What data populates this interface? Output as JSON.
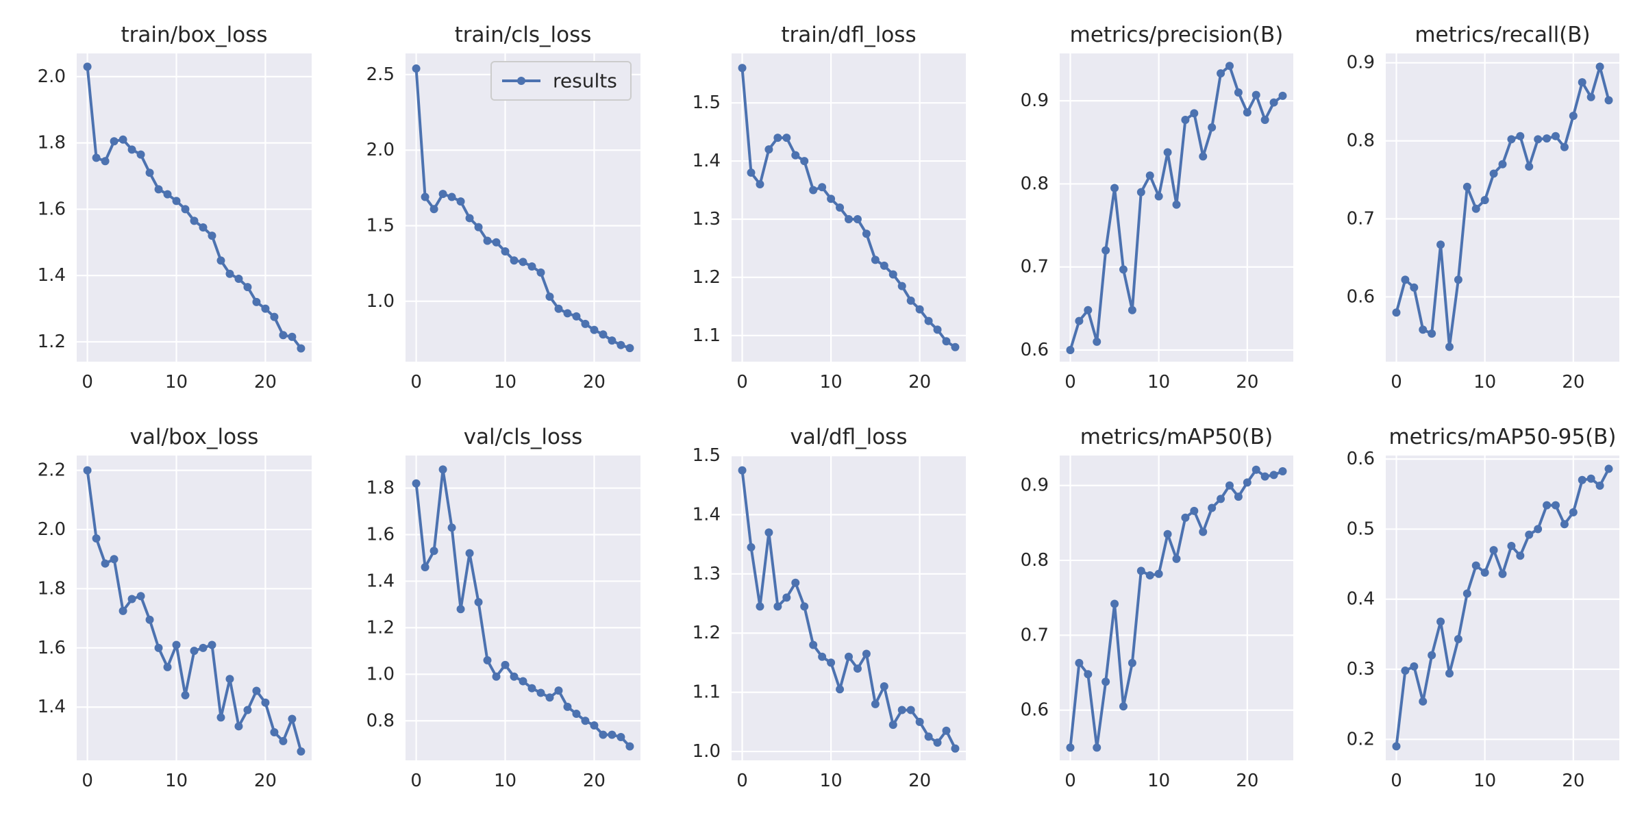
{
  "style": {
    "axes_background": "#EAEAF2",
    "grid_color": "#FFFFFF",
    "line_color": "#4C72B0",
    "text_color": "#262626",
    "legend_border": "#CCCCCC"
  },
  "legend": {
    "label": "results",
    "placement": "upper right",
    "subplot": "train/cls_loss"
  },
  "chart_data": [
    {
      "type": "line",
      "title": "train/box_loss",
      "x": [
        0,
        1,
        2,
        3,
        4,
        5,
        6,
        7,
        8,
        9,
        10,
        11,
        12,
        13,
        14,
        15,
        16,
        17,
        18,
        19,
        20,
        21,
        22,
        23,
        24
      ],
      "series": [
        {
          "name": "results",
          "values": [
            2.03,
            1.755,
            1.745,
            1.805,
            1.81,
            1.78,
            1.765,
            1.71,
            1.66,
            1.645,
            1.625,
            1.6,
            1.565,
            1.545,
            1.52,
            1.445,
            1.405,
            1.39,
            1.365,
            1.32,
            1.3,
            1.275,
            1.22,
            1.215,
            1.18
          ]
        }
      ],
      "xlim": [
        -1.2,
        25.2
      ],
      "ylim": [
        1.14,
        2.07
      ],
      "xticks": [
        0,
        10,
        20
      ],
      "yticks": [
        1.2,
        1.4,
        1.6,
        1.8,
        2.0
      ],
      "xtick_labels": [
        "0",
        "10",
        "20"
      ],
      "ytick_labels": [
        "1.2",
        "1.4",
        "1.6",
        "1.8",
        "2.0"
      ],
      "grid": true
    },
    {
      "type": "line",
      "title": "train/cls_loss",
      "x": [
        0,
        1,
        2,
        3,
        4,
        5,
        6,
        7,
        8,
        9,
        10,
        11,
        12,
        13,
        14,
        15,
        16,
        17,
        18,
        19,
        20,
        21,
        22,
        23,
        24
      ],
      "series": [
        {
          "name": "results",
          "values": [
            2.54,
            1.69,
            1.61,
            1.71,
            1.69,
            1.66,
            1.55,
            1.49,
            1.4,
            1.39,
            1.33,
            1.27,
            1.26,
            1.23,
            1.19,
            1.03,
            0.95,
            0.92,
            0.9,
            0.85,
            0.81,
            0.78,
            0.74,
            0.71,
            0.69
          ]
        }
      ],
      "xlim": [
        -1.2,
        25.2
      ],
      "ylim": [
        0.6,
        2.64
      ],
      "xticks": [
        0,
        10,
        20
      ],
      "yticks": [
        1.0,
        1.5,
        2.0,
        2.5
      ],
      "xtick_labels": [
        "0",
        "10",
        "20"
      ],
      "ytick_labels": [
        "1.0",
        "1.5",
        "2.0",
        "2.5"
      ],
      "grid": true
    },
    {
      "type": "line",
      "title": "train/dfl_loss",
      "x": [
        0,
        1,
        2,
        3,
        4,
        5,
        6,
        7,
        8,
        9,
        10,
        11,
        12,
        13,
        14,
        15,
        16,
        17,
        18,
        19,
        20,
        21,
        22,
        23,
        24
      ],
      "series": [
        {
          "name": "results",
          "values": [
            1.56,
            1.38,
            1.36,
            1.42,
            1.44,
            1.44,
            1.41,
            1.4,
            1.35,
            1.355,
            1.335,
            1.32,
            1.3,
            1.3,
            1.275,
            1.23,
            1.22,
            1.205,
            1.185,
            1.16,
            1.145,
            1.125,
            1.11,
            1.09,
            1.08
          ]
        }
      ],
      "xlim": [
        -1.2,
        25.2
      ],
      "ylim": [
        1.055,
        1.585
      ],
      "xticks": [
        0,
        10,
        20
      ],
      "yticks": [
        1.1,
        1.2,
        1.3,
        1.4,
        1.5
      ],
      "xtick_labels": [
        "0",
        "10",
        "20"
      ],
      "ytick_labels": [
        "1.1",
        "1.2",
        "1.3",
        "1.4",
        "1.5"
      ],
      "grid": true
    },
    {
      "type": "line",
      "title": "metrics/precision(B)",
      "x": [
        0,
        1,
        2,
        3,
        4,
        5,
        6,
        7,
        8,
        9,
        10,
        11,
        12,
        13,
        14,
        15,
        16,
        17,
        18,
        19,
        20,
        21,
        22,
        23,
        24
      ],
      "series": [
        {
          "name": "results",
          "values": [
            0.6,
            0.635,
            0.648,
            0.61,
            0.72,
            0.795,
            0.697,
            0.648,
            0.79,
            0.81,
            0.785,
            0.838,
            0.775,
            0.877,
            0.885,
            0.833,
            0.868,
            0.933,
            0.942,
            0.91,
            0.886,
            0.907,
            0.877,
            0.898,
            0.906
          ]
        }
      ],
      "xlim": [
        -1.2,
        25.2
      ],
      "ylim": [
        0.586,
        0.957
      ],
      "xticks": [
        0,
        10,
        20
      ],
      "yticks": [
        0.6,
        0.7,
        0.8,
        0.9
      ],
      "xtick_labels": [
        "0",
        "10",
        "20"
      ],
      "ytick_labels": [
        "0.6",
        "0.7",
        "0.8",
        "0.9"
      ],
      "grid": true
    },
    {
      "type": "line",
      "title": "metrics/recall(B)",
      "x": [
        0,
        1,
        2,
        3,
        4,
        5,
        6,
        7,
        8,
        9,
        10,
        11,
        12,
        13,
        14,
        15,
        16,
        17,
        18,
        19,
        20,
        21,
        22,
        23,
        24
      ],
      "series": [
        {
          "name": "results",
          "values": [
            0.58,
            0.622,
            0.612,
            0.558,
            0.553,
            0.667,
            0.536,
            0.622,
            0.741,
            0.713,
            0.724,
            0.758,
            0.77,
            0.802,
            0.806,
            0.767,
            0.802,
            0.803,
            0.806,
            0.792,
            0.832,
            0.875,
            0.856,
            0.895,
            0.852
          ]
        }
      ],
      "xlim": [
        -1.2,
        25.2
      ],
      "ylim": [
        0.517,
        0.912
      ],
      "xticks": [
        0,
        10,
        20
      ],
      "yticks": [
        0.6,
        0.7,
        0.8,
        0.9
      ],
      "xtick_labels": [
        "0",
        "10",
        "20"
      ],
      "ytick_labels": [
        "0.6",
        "0.7",
        "0.8",
        "0.9"
      ],
      "grid": true
    },
    {
      "type": "line",
      "title": "val/box_loss",
      "x": [
        0,
        1,
        2,
        3,
        4,
        5,
        6,
        7,
        8,
        9,
        10,
        11,
        12,
        13,
        14,
        15,
        16,
        17,
        18,
        19,
        20,
        21,
        22,
        23,
        24
      ],
      "series": [
        {
          "name": "results",
          "values": [
            2.2,
            1.97,
            1.885,
            1.9,
            1.725,
            1.765,
            1.775,
            1.695,
            1.6,
            1.535,
            1.61,
            1.44,
            1.59,
            1.6,
            1.61,
            1.365,
            1.495,
            1.335,
            1.39,
            1.455,
            1.415,
            1.315,
            1.285,
            1.36,
            1.25
          ]
        }
      ],
      "xlim": [
        -1.2,
        25.2
      ],
      "ylim": [
        1.22,
        2.25
      ],
      "xticks": [
        0,
        10,
        20
      ],
      "yticks": [
        1.4,
        1.6,
        1.8,
        2.0,
        2.2
      ],
      "xtick_labels": [
        "0",
        "10",
        "20"
      ],
      "ytick_labels": [
        "1.4",
        "1.6",
        "1.8",
        "2.0",
        "2.2"
      ],
      "grid": true
    },
    {
      "type": "line",
      "title": "val/cls_loss",
      "x": [
        0,
        1,
        2,
        3,
        4,
        5,
        6,
        7,
        8,
        9,
        10,
        11,
        12,
        13,
        14,
        15,
        16,
        17,
        18,
        19,
        20,
        21,
        22,
        23,
        24
      ],
      "series": [
        {
          "name": "results",
          "values": [
            1.82,
            1.46,
            1.53,
            1.88,
            1.63,
            1.28,
            1.52,
            1.31,
            1.06,
            0.99,
            1.04,
            0.99,
            0.97,
            0.94,
            0.92,
            0.9,
            0.93,
            0.86,
            0.83,
            0.8,
            0.78,
            0.74,
            0.74,
            0.73,
            0.69
          ]
        }
      ],
      "xlim": [
        -1.2,
        25.2
      ],
      "ylim": [
        0.63,
        1.94
      ],
      "xticks": [
        0,
        10,
        20
      ],
      "yticks": [
        0.8,
        1.0,
        1.2,
        1.4,
        1.6,
        1.8
      ],
      "xtick_labels": [
        "0",
        "10",
        "20"
      ],
      "ytick_labels": [
        "0.8",
        "1.0",
        "1.2",
        "1.4",
        "1.6",
        "1.8"
      ],
      "grid": true
    },
    {
      "type": "line",
      "title": "val/dfl_loss",
      "x": [
        0,
        1,
        2,
        3,
        4,
        5,
        6,
        7,
        8,
        9,
        10,
        11,
        12,
        13,
        14,
        15,
        16,
        17,
        18,
        19,
        20,
        21,
        22,
        23,
        24
      ],
      "series": [
        {
          "name": "results",
          "values": [
            1.475,
            1.345,
            1.245,
            1.37,
            1.245,
            1.26,
            1.285,
            1.245,
            1.18,
            1.16,
            1.15,
            1.105,
            1.16,
            1.14,
            1.165,
            1.08,
            1.11,
            1.045,
            1.07,
            1.07,
            1.05,
            1.025,
            1.015,
            1.035,
            1.005
          ]
        }
      ],
      "xlim": [
        -1.2,
        25.2
      ],
      "ylim": [
        0.985,
        1.5
      ],
      "xticks": [
        0,
        10,
        20
      ],
      "yticks": [
        1.0,
        1.1,
        1.2,
        1.3,
        1.4,
        1.5
      ],
      "xtick_labels": [
        "0",
        "10",
        "20"
      ],
      "ytick_labels": [
        "1.0",
        "1.1",
        "1.2",
        "1.3",
        "1.4",
        "1.5"
      ],
      "grid": true
    },
    {
      "type": "line",
      "title": "metrics/mAP50(B)",
      "x": [
        0,
        1,
        2,
        3,
        4,
        5,
        6,
        7,
        8,
        9,
        10,
        11,
        12,
        13,
        14,
        15,
        16,
        17,
        18,
        19,
        20,
        21,
        22,
        23,
        24
      ],
      "series": [
        {
          "name": "results",
          "values": [
            0.55,
            0.663,
            0.648,
            0.55,
            0.638,
            0.742,
            0.605,
            0.663,
            0.786,
            0.78,
            0.782,
            0.835,
            0.802,
            0.857,
            0.866,
            0.838,
            0.87,
            0.882,
            0.9,
            0.885,
            0.904,
            0.921,
            0.912,
            0.914,
            0.919
          ]
        }
      ],
      "xlim": [
        -1.2,
        25.2
      ],
      "ylim": [
        0.533,
        0.94
      ],
      "xticks": [
        0,
        10,
        20
      ],
      "yticks": [
        0.6,
        0.7,
        0.8,
        0.9
      ],
      "xtick_labels": [
        "0",
        "10",
        "20"
      ],
      "ytick_labels": [
        "0.6",
        "0.7",
        "0.8",
        "0.9"
      ],
      "grid": true
    },
    {
      "type": "line",
      "title": "metrics/mAP50-95(B)",
      "x": [
        0,
        1,
        2,
        3,
        4,
        5,
        6,
        7,
        8,
        9,
        10,
        11,
        12,
        13,
        14,
        15,
        16,
        17,
        18,
        19,
        20,
        21,
        22,
        23,
        24
      ],
      "series": [
        {
          "name": "results",
          "values": [
            0.19,
            0.298,
            0.304,
            0.254,
            0.32,
            0.368,
            0.294,
            0.343,
            0.408,
            0.448,
            0.438,
            0.47,
            0.436,
            0.476,
            0.462,
            0.492,
            0.5,
            0.534,
            0.534,
            0.507,
            0.524,
            0.57,
            0.572,
            0.562,
            0.586
          ]
        }
      ],
      "xlim": [
        -1.2,
        25.2
      ],
      "ylim": [
        0.17,
        0.605
      ],
      "xticks": [
        0,
        10,
        20
      ],
      "yticks": [
        0.2,
        0.3,
        0.4,
        0.5,
        0.6
      ],
      "xtick_labels": [
        "0",
        "10",
        "20"
      ],
      "ytick_labels": [
        "0.2",
        "0.3",
        "0.4",
        "0.5",
        "0.6"
      ],
      "grid": true
    }
  ]
}
